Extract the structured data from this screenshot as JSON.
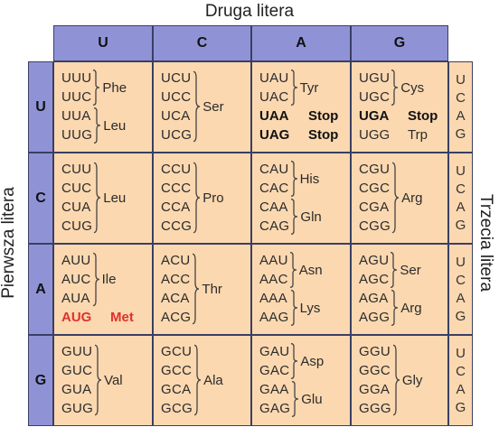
{
  "labels": {
    "top": "Druga litera",
    "left": "Pierwsza litera",
    "right": "Trzecia litera"
  },
  "bases": [
    "U",
    "C",
    "A",
    "G"
  ],
  "third": [
    "U",
    "C",
    "A",
    "G"
  ],
  "rows": [
    {
      "first": "U",
      "cols": [
        {
          "groups": [
            {
              "codons": [
                "UUU",
                "UUC"
              ],
              "aa": "Phe"
            },
            {
              "codons": [
                "UUA",
                "UUG"
              ],
              "aa": "Leu"
            }
          ]
        },
        {
          "groups": [
            {
              "codons": [
                "UCU",
                "UCC",
                "UCA",
                "UCG"
              ],
              "aa": "Ser"
            }
          ]
        },
        {
          "groups": [
            {
              "codons": [
                "UAU",
                "UAC"
              ],
              "aa": "Tyr"
            }
          ],
          "stops": [
            {
              "codon": "UAA",
              "aa": "Stop"
            },
            {
              "codon": "UAG",
              "aa": "Stop"
            }
          ]
        },
        {
          "groups": [
            {
              "codons": [
                "UGU",
                "UGC"
              ],
              "aa": "Cys"
            }
          ],
          "special": [
            {
              "codon": "UGA",
              "aa": "Stop",
              "bold": true
            },
            {
              "codon": "UGG",
              "aa": "Trp",
              "bold": false
            }
          ]
        }
      ]
    },
    {
      "first": "C",
      "cols": [
        {
          "groups": [
            {
              "codons": [
                "CUU",
                "CUC",
                "CUA",
                "CUG"
              ],
              "aa": "Leu"
            }
          ]
        },
        {
          "groups": [
            {
              "codons": [
                "CCU",
                "CCC",
                "CCA",
                "CCG"
              ],
              "aa": "Pro"
            }
          ]
        },
        {
          "groups": [
            {
              "codons": [
                "CAU",
                "CAC"
              ],
              "aa": "His"
            },
            {
              "codons": [
                "CAA",
                "CAG"
              ],
              "aa": "Gln"
            }
          ]
        },
        {
          "groups": [
            {
              "codons": [
                "CGU",
                "CGC",
                "CGA",
                "CGG"
              ],
              "aa": "Arg"
            }
          ]
        }
      ]
    },
    {
      "first": "A",
      "cols": [
        {
          "groups": [
            {
              "codons": [
                "AUU",
                "AUC",
                "AUA"
              ],
              "aa": "Ile"
            }
          ],
          "start": {
            "codon": "AUG",
            "aa": "Met"
          }
        },
        {
          "groups": [
            {
              "codons": [
                "ACU",
                "ACC",
                "ACA",
                "ACG"
              ],
              "aa": "Thr"
            }
          ]
        },
        {
          "groups": [
            {
              "codons": [
                "AAU",
                "AAC"
              ],
              "aa": "Asn"
            },
            {
              "codons": [
                "AAA",
                "AAG"
              ],
              "aa": "Lys"
            }
          ]
        },
        {
          "groups": [
            {
              "codons": [
                "AGU",
                "AGC"
              ],
              "aa": "Ser"
            },
            {
              "codons": [
                "AGA",
                "AGG"
              ],
              "aa": "Arg"
            }
          ]
        }
      ]
    },
    {
      "first": "G",
      "cols": [
        {
          "groups": [
            {
              "codons": [
                "GUU",
                "GUC",
                "GUA",
                "GUG"
              ],
              "aa": "Val"
            }
          ]
        },
        {
          "groups": [
            {
              "codons": [
                "GCU",
                "GCC",
                "GCA",
                "GCG"
              ],
              "aa": "Ala"
            }
          ]
        },
        {
          "groups": [
            {
              "codons": [
                "GAU",
                "GAC"
              ],
              "aa": "Asp"
            },
            {
              "codons": [
                "GAA",
                "GAG"
              ],
              "aa": "Glu"
            }
          ]
        },
        {
          "groups": [
            {
              "codons": [
                "GGU",
                "GGC",
                "GGA",
                "GGG"
              ],
              "aa": "Gly"
            }
          ]
        }
      ]
    }
  ],
  "colors": {
    "header": "#8f93d6",
    "cell": "#fbd8b0",
    "border": "#3a3f63",
    "start": "#e0312d"
  }
}
